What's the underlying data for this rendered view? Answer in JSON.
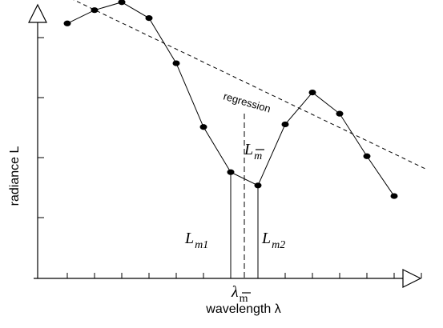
{
  "chart_data": {
    "type": "line",
    "xlabel": "wavelength λ",
    "ylabel": "radiance L",
    "grid": false,
    "axis_arrows": true,
    "series": [
      {
        "values": [
          [
            1,
            0.76
          ],
          [
            2,
            0.81
          ],
          [
            3,
            0.84
          ],
          [
            4,
            0.78
          ],
          [
            5,
            0.61
          ],
          [
            6,
            0.37
          ],
          [
            7,
            0.2
          ],
          [
            8,
            0.15
          ],
          [
            9,
            0.38
          ],
          [
            10,
            0.5
          ],
          [
            11,
            0.42
          ],
          [
            12,
            0.26
          ],
          [
            13,
            0.11
          ]
        ]
      }
    ],
    "regression": {
      "label": "regression",
      "line": [
        [
          0.4,
          0.89
        ],
        [
          14.2,
          0.21
        ]
      ]
    },
    "annotations": {
      "L_m_bar": {
        "base": "L",
        "sub": "m",
        "sub_overline": true
      },
      "L_m1": {
        "base": "L",
        "sub": "m1"
      },
      "L_m2": {
        "base": "L",
        "sub": "m2"
      },
      "lambda_m_bar": {
        "base": "λ",
        "sub": "m",
        "sub_overline": true
      }
    },
    "xlim": [
      0,
      15
    ],
    "ylim": [
      -0.2,
      1.0
    ],
    "x_ticks": 13,
    "y_ticks": 5
  }
}
